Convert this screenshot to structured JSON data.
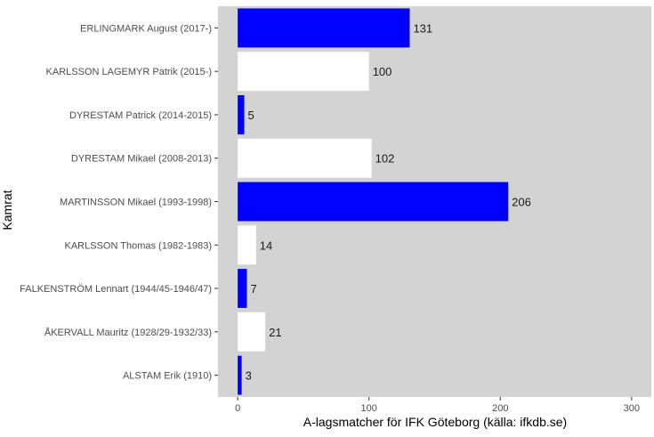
{
  "chart_data": {
    "type": "bar",
    "orientation": "horizontal",
    "xlabel": "A-lagsmatcher för IFK Göteborg (källa: ifkdb.se)",
    "ylabel": "Kamrat",
    "xlim": [
      -15,
      315
    ],
    "xticks": [
      0,
      100,
      200,
      300
    ],
    "grid": false,
    "panel_background": "#d3d3d3",
    "categories": [
      "ERLINGMARK August (2017-)",
      "KARLSSON LAGEMYR Patrik (2015-)",
      "DYRESTAM Patrick (2014-2015)",
      "DYRESTAM Mikael (2008-2013)",
      "MARTINSSON Mikael (1993-1998)",
      "KARLSSON Thomas (1982-1983)",
      "FALKENSTRÖM Lennart (1944/45-1946/47)",
      "ÅKERVALL Mauritz (1928/29-1932/33)",
      "ALSTAM Erik (1910)"
    ],
    "values": [
      131,
      100,
      5,
      102,
      206,
      14,
      7,
      21,
      3
    ],
    "data_labels": [
      "131",
      "100",
      "5",
      "102",
      "206",
      "14",
      "7",
      "21",
      "3"
    ],
    "bar_colors": [
      "#0000ff",
      "#ffffff",
      "#0000ff",
      "#ffffff",
      "#0000ff",
      "#ffffff",
      "#0000ff",
      "#ffffff",
      "#0000ff"
    ]
  }
}
